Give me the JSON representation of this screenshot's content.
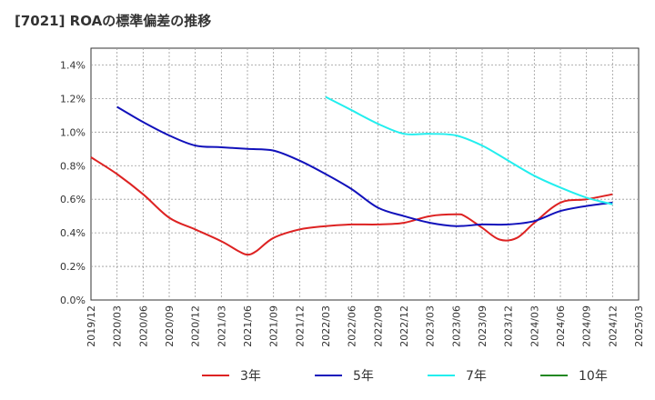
{
  "chart_data": {
    "type": "line",
    "title": "[7021]  ROAの標準偏差の推移",
    "xlabel": "",
    "ylabel": "",
    "ylim": [
      0,
      0.015
    ],
    "y_ticks": [
      {
        "value": 0.0,
        "label": "0.0%"
      },
      {
        "value": 0.002,
        "label": "0.2%"
      },
      {
        "value": 0.004,
        "label": "0.4%"
      },
      {
        "value": 0.006,
        "label": "0.6%"
      },
      {
        "value": 0.008,
        "label": "0.8%"
      },
      {
        "value": 0.01,
        "label": "1.0%"
      },
      {
        "value": 0.012,
        "label": "1.2%"
      },
      {
        "value": 0.014,
        "label": "1.4%"
      }
    ],
    "x_ticks": [
      "2019/12",
      "2020/03",
      "2020/06",
      "2020/09",
      "2020/12",
      "2021/03",
      "2021/06",
      "2021/09",
      "2021/12",
      "2022/03",
      "2022/06",
      "2022/09",
      "2022/12",
      "2023/03",
      "2023/06",
      "2023/09",
      "2023/12",
      "2024/03",
      "2024/06",
      "2024/09",
      "2024/12",
      "2025/03"
    ],
    "grid": true,
    "legend_position": "bottom",
    "series": [
      {
        "name": "3年",
        "color": "#dd2222",
        "x": [
          "2019/12",
          "2020/03",
          "2020/06",
          "2020/09",
          "2020/12",
          "2021/03",
          "2021/05",
          "2021/06",
          "2021/07",
          "2021/09",
          "2021/12",
          "2022/03",
          "2022/06",
          "2022/09",
          "2022/12",
          "2023/03",
          "2023/06",
          "2023/07",
          "2023/09",
          "2023/11",
          "2024/01",
          "2024/03",
          "2024/06",
          "2024/09",
          "2024/12"
        ],
        "values": [
          0.0085,
          0.0075,
          0.0063,
          0.0049,
          0.0042,
          0.0035,
          0.0029,
          0.0027,
          0.0029,
          0.0037,
          0.0042,
          0.0044,
          0.0045,
          0.0045,
          0.0046,
          0.005,
          0.0051,
          0.005,
          0.0043,
          0.0036,
          0.0037,
          0.0046,
          0.0058,
          0.006,
          0.0063
        ]
      },
      {
        "name": "5年",
        "color": "#1111bb",
        "x": [
          "2020/03",
          "2020/06",
          "2020/09",
          "2020/12",
          "2021/03",
          "2021/06",
          "2021/09",
          "2021/12",
          "2022/03",
          "2022/06",
          "2022/09",
          "2022/12",
          "2023/03",
          "2023/06",
          "2023/09",
          "2023/12",
          "2024/03",
          "2024/06",
          "2024/09",
          "2024/12"
        ],
        "values": [
          0.0115,
          0.0106,
          0.0098,
          0.0092,
          0.0091,
          0.009,
          0.0089,
          0.0083,
          0.0075,
          0.0066,
          0.0055,
          0.005,
          0.0046,
          0.0044,
          0.0045,
          0.0045,
          0.0047,
          0.0053,
          0.0056,
          0.0058
        ]
      },
      {
        "name": "7年",
        "color": "#22eeee",
        "x": [
          "2022/03",
          "2022/06",
          "2022/09",
          "2022/12",
          "2023/03",
          "2023/06",
          "2023/09",
          "2023/12",
          "2024/03",
          "2024/06",
          "2024/09",
          "2024/12"
        ],
        "values": [
          0.0121,
          0.0113,
          0.0105,
          0.0099,
          0.0099,
          0.0098,
          0.0092,
          0.0083,
          0.0074,
          0.0067,
          0.0061,
          0.0057
        ]
      },
      {
        "name": "10年",
        "color": "#228822",
        "x": [],
        "values": []
      }
    ]
  }
}
